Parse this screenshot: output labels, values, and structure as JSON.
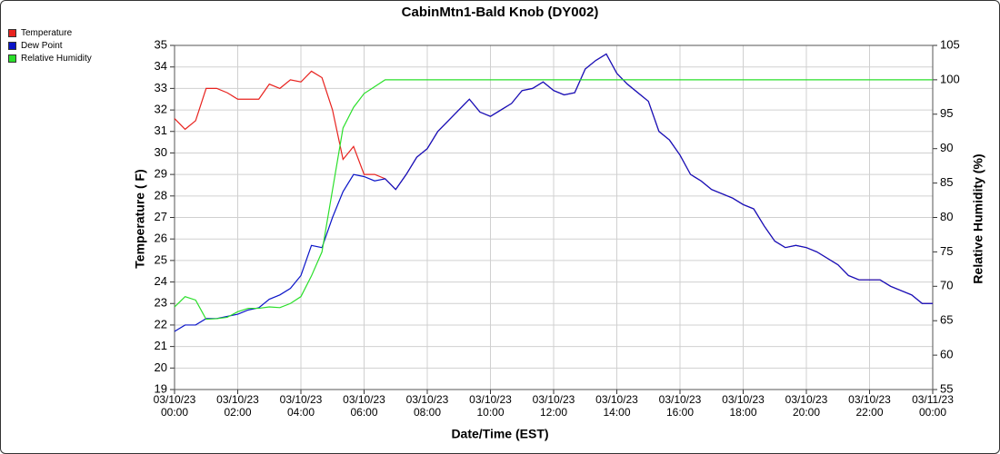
{
  "chart_data": {
    "type": "line",
    "title": "CabinMtn1-Bald Knob (DY002)",
    "x_label": "Date/Time (EST)",
    "y_label": "Temperature ( F)",
    "y2_label": "Relative Humidity (%)",
    "x": [
      "03/10/23 00:00",
      "03/10/23 00:20",
      "03/10/23 00:40",
      "03/10/23 01:00",
      "03/10/23 01:20",
      "03/10/23 01:40",
      "03/10/23 02:00",
      "03/10/23 02:20",
      "03/10/23 02:40",
      "03/10/23 03:00",
      "03/10/23 03:20",
      "03/10/23 03:40",
      "03/10/23 04:00",
      "03/10/23 04:20",
      "03/10/23 04:40",
      "03/10/23 05:00",
      "03/10/23 05:20",
      "03/10/23 05:40",
      "03/10/23 06:00",
      "03/10/23 06:20",
      "03/10/23 06:40",
      "03/10/23 07:00",
      "03/10/23 07:20",
      "03/10/23 07:40",
      "03/10/23 08:00",
      "03/10/23 08:20",
      "03/10/23 08:40",
      "03/10/23 09:00",
      "03/10/23 09:20",
      "03/10/23 09:40",
      "03/10/23 10:00",
      "03/10/23 10:20",
      "03/10/23 10:40",
      "03/10/23 11:00",
      "03/10/23 11:20",
      "03/10/23 11:40",
      "03/10/23 12:00",
      "03/10/23 12:20",
      "03/10/23 12:40",
      "03/10/23 13:00",
      "03/10/23 13:20",
      "03/10/23 13:40",
      "03/10/23 14:00",
      "03/10/23 14:20",
      "03/10/23 14:40",
      "03/10/23 15:00",
      "03/10/23 15:20",
      "03/10/23 15:40",
      "03/10/23 16:00",
      "03/10/23 16:20",
      "03/10/23 16:40",
      "03/10/23 17:00",
      "03/10/23 17:20",
      "03/10/23 17:40",
      "03/10/23 18:00",
      "03/10/23 18:20",
      "03/10/23 18:40",
      "03/10/23 19:00",
      "03/10/23 19:20",
      "03/10/23 19:40",
      "03/10/23 20:00",
      "03/10/23 20:20",
      "03/10/23 20:40",
      "03/10/23 21:00",
      "03/10/23 21:20",
      "03/10/23 21:40",
      "03/10/23 22:00",
      "03/10/23 22:20",
      "03/10/23 22:40",
      "03/10/23 23:00",
      "03/10/23 23:20",
      "03/10/23 23:40",
      "03/11/23 00:00"
    ],
    "series": [
      {
        "name": "Temperature",
        "color": "#e8231f",
        "values": [
          31.6,
          31.1,
          31.5,
          33.0,
          33.0,
          32.8,
          32.5,
          32.5,
          32.5,
          33.2,
          33.0,
          33.4,
          33.3,
          33.8,
          33.5,
          32.0,
          29.7,
          30.3,
          29.0,
          29.0,
          28.8,
          28.3,
          29.0,
          29.8,
          30.2,
          31.0,
          31.5,
          32.0,
          32.5,
          31.9,
          31.7,
          32.0,
          32.3,
          32.9,
          33.0,
          33.3,
          32.9,
          32.7,
          32.8,
          33.9,
          34.3,
          34.6,
          33.7,
          33.2,
          32.8,
          32.4,
          31.0,
          30.6,
          29.9,
          29.0,
          28.7,
          28.3,
          28.1,
          27.9,
          27.6,
          27.4,
          26.6,
          25.9,
          25.6,
          25.7,
          25.6,
          25.4,
          25.1,
          24.8,
          24.3,
          24.1,
          24.1,
          24.1,
          23.8,
          23.6,
          23.4,
          23.0,
          23.0
        ]
      },
      {
        "name": "Dew Point",
        "color": "#0a14c8",
        "values": [
          21.7,
          22.0,
          22.0,
          22.3,
          22.3,
          22.4,
          22.5,
          22.7,
          22.8,
          23.2,
          23.4,
          23.7,
          24.3,
          25.7,
          25.6,
          27.0,
          28.2,
          29.0,
          28.9,
          28.7,
          28.8,
          28.3,
          29.0,
          29.8,
          30.2,
          31.0,
          31.5,
          32.0,
          32.5,
          31.9,
          31.7,
          32.0,
          32.3,
          32.9,
          33.0,
          33.3,
          32.9,
          32.7,
          32.8,
          33.9,
          34.3,
          34.6,
          33.7,
          33.2,
          32.8,
          32.4,
          31.0,
          30.6,
          29.9,
          29.0,
          28.7,
          28.3,
          28.1,
          27.9,
          27.6,
          27.4,
          26.6,
          25.9,
          25.6,
          25.7,
          25.6,
          25.4,
          25.1,
          24.8,
          24.3,
          24.1,
          24.1,
          24.1,
          23.8,
          23.6,
          23.4,
          23.0,
          23.0
        ]
      },
      {
        "name": "Relative Humidity",
        "color": "#2adf2a",
        "axis": "y2",
        "values": [
          67,
          68.5,
          68,
          65.2,
          65.3,
          65.5,
          66.3,
          66.8,
          66.8,
          67.0,
          66.9,
          67.5,
          68.5,
          71.5,
          75,
          84,
          93,
          96,
          98,
          99,
          100,
          100,
          100,
          100,
          100,
          100,
          100,
          100,
          100,
          100,
          100,
          100,
          100,
          100,
          100,
          100,
          100,
          100,
          100,
          100,
          100,
          100,
          100,
          100,
          100,
          100,
          100,
          100,
          100,
          100,
          100,
          100,
          100,
          100,
          100,
          100,
          100,
          100,
          100,
          100,
          100,
          100,
          100,
          100,
          100,
          100,
          100,
          100,
          100,
          100,
          100,
          100,
          100
        ]
      }
    ],
    "xlim": [
      "03/10/23 00:00",
      "03/11/23 00:00"
    ],
    "xticks": [
      "03/10/23 00:00",
      "03/10/23 02:00",
      "03/10/23 04:00",
      "03/10/23 06:00",
      "03/10/23 08:00",
      "03/10/23 10:00",
      "03/10/23 12:00",
      "03/10/23 14:00",
      "03/10/23 16:00",
      "03/10/23 18:00",
      "03/10/23 20:00",
      "03/10/23 22:00",
      "03/11/23 00:00"
    ],
    "ylim": [
      19,
      35
    ],
    "yticks": [
      19,
      20,
      21,
      22,
      23,
      24,
      25,
      26,
      27,
      28,
      29,
      30,
      31,
      32,
      33,
      34,
      35
    ],
    "y2lim": [
      55,
      105
    ],
    "y2ticks": [
      55,
      60,
      65,
      70,
      75,
      80,
      85,
      90,
      95,
      100,
      105
    ],
    "grid": true,
    "legend": "top-left"
  }
}
